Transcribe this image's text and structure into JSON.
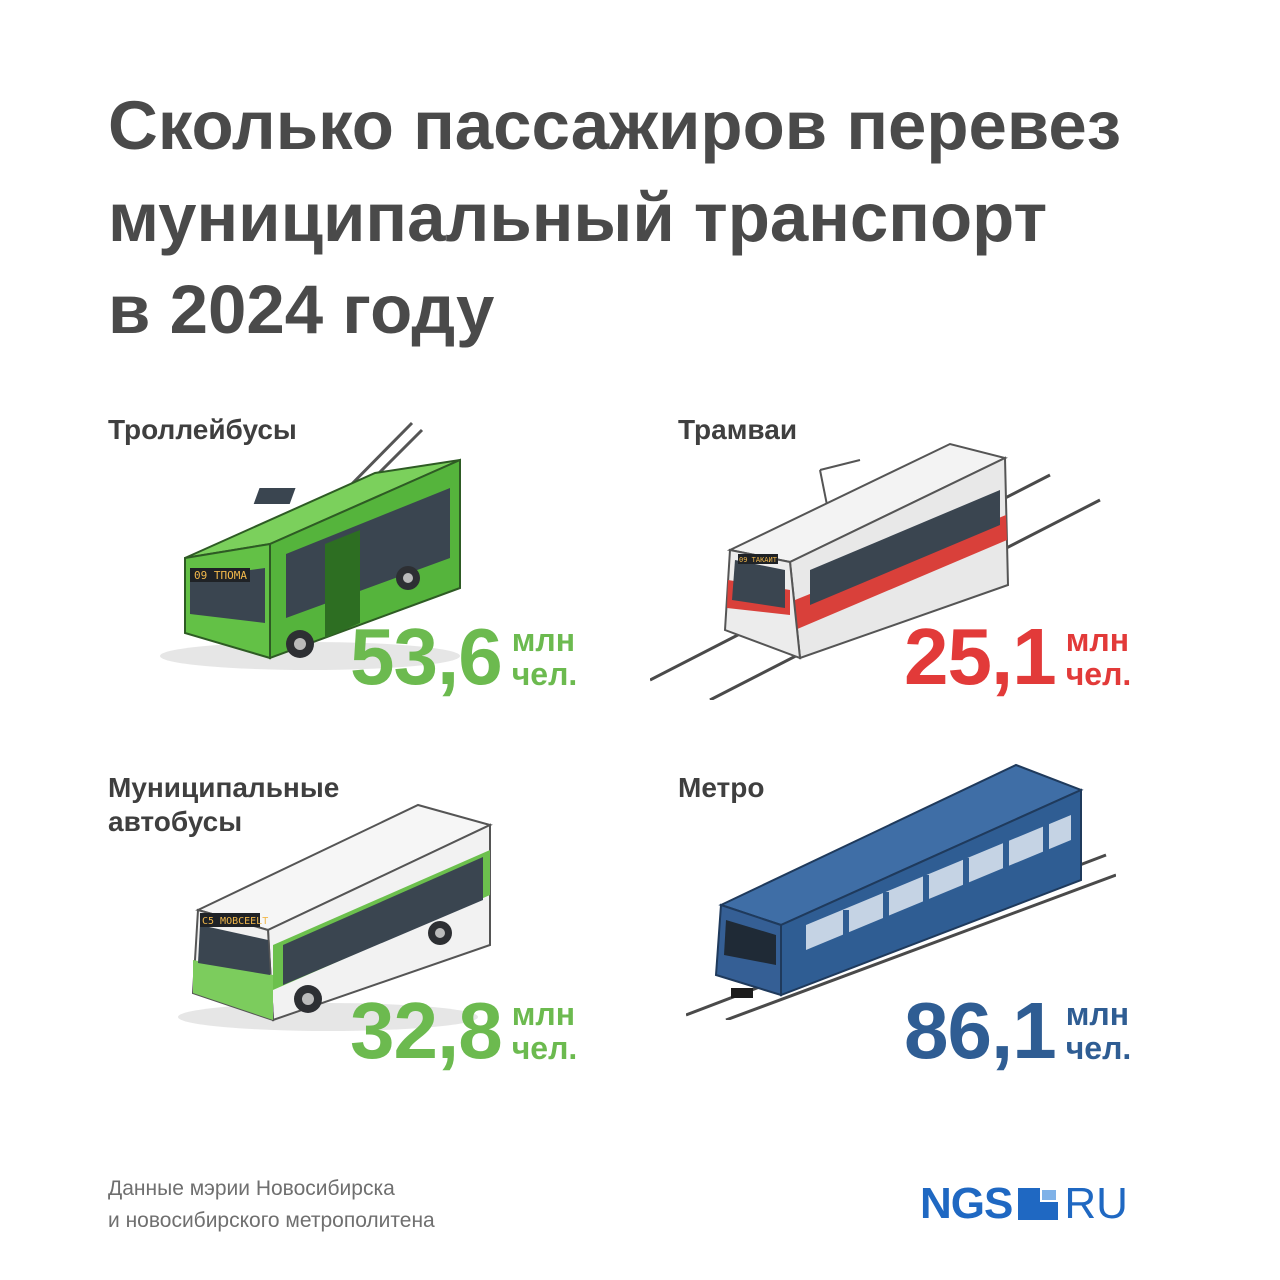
{
  "title": {
    "line1": "Сколько пассажиров перевез",
    "line2": "муниципальный транспорт",
    "line3": "в 2024 году"
  },
  "items": [
    {
      "label_lines": [
        "Троллейбусы"
      ],
      "value": "53,6",
      "unit_line1": "млн",
      "unit_line2": "чел.",
      "color": "#6cba4f",
      "icon": "trolleybus-icon",
      "sign_text": "09 ТПОМА"
    },
    {
      "label_lines": [
        "Трамваи"
      ],
      "value": "25,1",
      "unit_line1": "млн",
      "unit_line2": "чел.",
      "color": "#e23a39",
      "icon": "tram-icon",
      "sign_text": "09 ТАКАИТ"
    },
    {
      "label_lines": [
        "Муниципальные",
        "автобусы"
      ],
      "value": "32,8",
      "unit_line1": "млн",
      "unit_line2": "чел.",
      "color": "#6cba4f",
      "icon": "bus-icon",
      "sign_text": "C5 МОВСЕЕLT"
    },
    {
      "label_lines": [
        "Метро"
      ],
      "value": "86,1",
      "unit_line1": "млн",
      "unit_line2": "чел.",
      "color": "#2f5d93",
      "icon": "metro-train-icon",
      "sign_text": ""
    }
  ],
  "source": {
    "line1": "Данные мэрии Новосибирска",
    "line2": "и новосибирского метрополитена"
  },
  "logo": {
    "left": "NGS",
    "right": "RU",
    "color": "#1f68c2"
  }
}
